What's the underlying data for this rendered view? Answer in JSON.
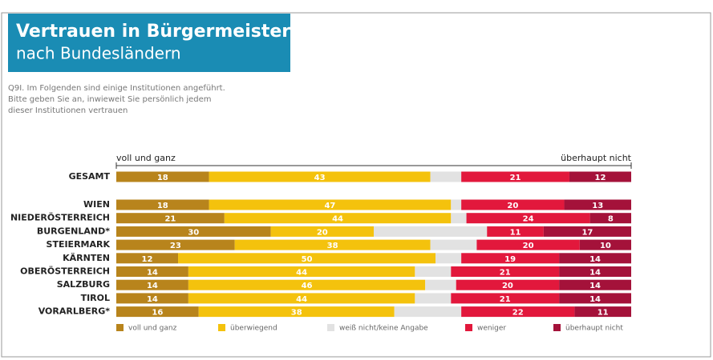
{
  "chart_data": {
    "type": "stacked-bar-horizontal",
    "title": "Vertrauen in Bürgermeister",
    "subtitle": "nach Bundesländern",
    "note": [
      "Q9I. Im Folgenden sind einige Institutionen angeführt.",
      "Bitte geben Sie an, inwieweit Sie persönlich jedem",
      "dieser Institutionen vertrauen"
    ],
    "x_label_left": "voll und ganz",
    "x_label_right": "überhaupt nicht",
    "xlim": [
      0,
      100
    ],
    "categories": [
      "GESAMT",
      "WIEN",
      "NIEDERÖSTERREICH",
      "BURGENLAND*",
      "STEIERMARK",
      "KÄRNTEN",
      "OBERÖSTERREICH",
      "SALZBURG",
      "TIROL",
      "VORARLBERG*"
    ],
    "series": [
      {
        "name": "voll und ganz",
        "color": "#b8841c",
        "values": [
          18,
          18,
          21,
          30,
          23,
          12,
          14,
          14,
          14,
          16
        ]
      },
      {
        "name": "überwiegend",
        "color": "#f4c20d",
        "values": [
          43,
          47,
          44,
          20,
          38,
          50,
          44,
          46,
          44,
          38
        ]
      },
      {
        "name": "weiß nicht/keine Angabe",
        "color": "#e2e2e2",
        "show_labels": false,
        "values": [
          6,
          2,
          3,
          22,
          9,
          5,
          7,
          6,
          7,
          13
        ]
      },
      {
        "name": "weniger",
        "color": "#e2183c",
        "values": [
          21,
          20,
          24,
          11,
          20,
          19,
          21,
          20,
          21,
          22
        ]
      },
      {
        "name": "überhaupt nicht",
        "color": "#a4123a",
        "values": [
          12,
          13,
          8,
          17,
          10,
          14,
          14,
          14,
          14,
          11
        ]
      }
    ],
    "legend": "bottom"
  }
}
